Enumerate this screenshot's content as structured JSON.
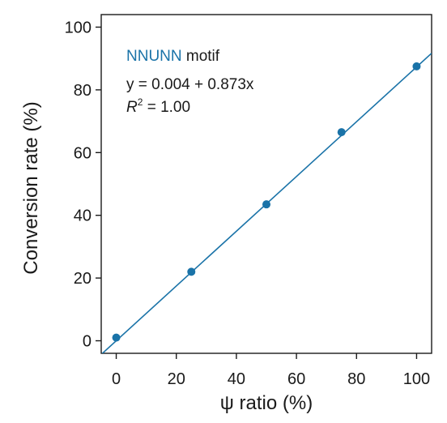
{
  "chart_data": {
    "type": "scatter",
    "xlabel": "ψ ratio (%)",
    "ylabel": "Conversion rate (%)",
    "xlim": [
      -5,
      105
    ],
    "ylim": [
      -4,
      104
    ],
    "xticks": [
      0,
      20,
      40,
      60,
      80,
      100
    ],
    "yticks": [
      0,
      20,
      40,
      60,
      80,
      100
    ],
    "grid": false,
    "colors": {
      "series": "#1a73a8",
      "axis": "#1a1a1a"
    },
    "series": [
      {
        "x": [
          0,
          25,
          50,
          75,
          100
        ],
        "y": [
          1,
          22,
          43.5,
          66.5,
          87.5
        ]
      }
    ],
    "fit": {
      "intercept": 0.004,
      "slope": 0.873
    },
    "annotations": {
      "motif_colored": "NNUNN",
      "motif_rest": " motif",
      "equation": "y = 0.004 + 0.873x",
      "r2_symbol": "R",
      "r2_sup": "2",
      "r2_value": " = 1.00"
    }
  }
}
